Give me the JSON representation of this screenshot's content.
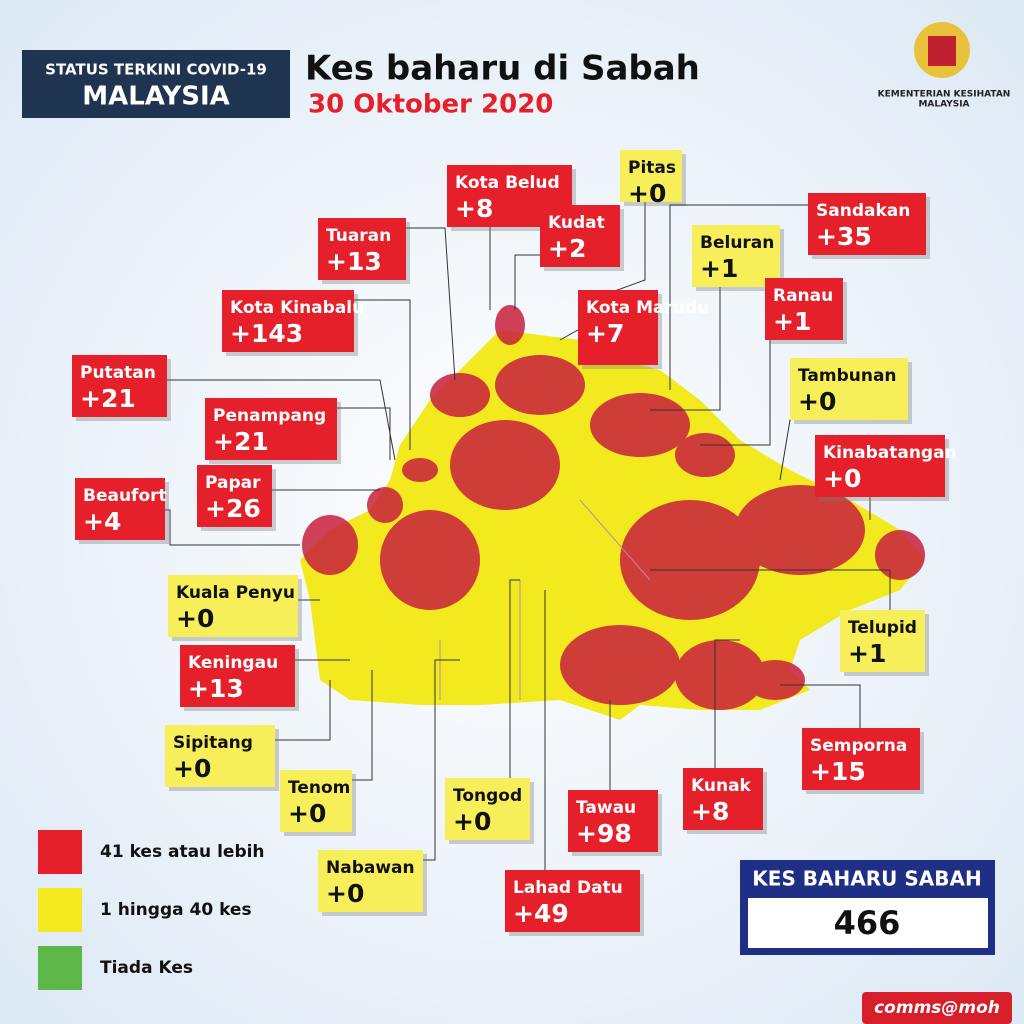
{
  "header": {
    "badge_line1": "STATUS TERKINI COVID-19",
    "badge_line2": "MALAYSIA",
    "title": "Kes baharu di Sabah",
    "date": "30 Oktober 2020",
    "ministry_line1": "KEMENTERIAN KESIHATAN",
    "ministry_line2": "MALAYSIA"
  },
  "districts": [
    {
      "name": "Kota Belud",
      "cases": "+8",
      "color": "#e5202a"
    },
    {
      "name": "Pitas",
      "cases": "+0",
      "color": "#f7ef5a"
    },
    {
      "name": "Kudat",
      "cases": "+2",
      "color": "#e5202a"
    },
    {
      "name": "Tuaran",
      "cases": "+13",
      "color": "#e5202a"
    },
    {
      "name": "Sandakan",
      "cases": "+35",
      "color": "#e5202a"
    },
    {
      "name": "Beluran",
      "cases": "+1",
      "color": "#f7ef5a"
    },
    {
      "name": "Kota Kinabalu",
      "cases": "+143",
      "color": "#e5202a"
    },
    {
      "name": "Kota Marudu",
      "cases": "+7",
      "color": "#e5202a"
    },
    {
      "name": "Ranau",
      "cases": "+1",
      "color": "#e5202a"
    },
    {
      "name": "Putatan",
      "cases": "+21",
      "color": "#e5202a"
    },
    {
      "name": "Tambunan",
      "cases": "+0",
      "color": "#f7ef5a"
    },
    {
      "name": "Penampang",
      "cases": "+21",
      "color": "#e5202a"
    },
    {
      "name": "Kinabatangan",
      "cases": "+0",
      "color": "#e5202a"
    },
    {
      "name": "Papar",
      "cases": "+26",
      "color": "#e5202a"
    },
    {
      "name": "Beaufort",
      "cases": "+4",
      "color": "#e5202a"
    },
    {
      "name": "Kuala Penyu",
      "cases": "+0",
      "color": "#f7ef5a"
    },
    {
      "name": "Telupid",
      "cases": "+1",
      "color": "#f7ef5a"
    },
    {
      "name": "Keningau",
      "cases": "+13",
      "color": "#e5202a"
    },
    {
      "name": "Semporna",
      "cases": "+15",
      "color": "#e5202a"
    },
    {
      "name": "Sipitang",
      "cases": "+0",
      "color": "#f7ef5a"
    },
    {
      "name": "Tenom",
      "cases": "+0",
      "color": "#f7ef5a"
    },
    {
      "name": "Tongod",
      "cases": "+0",
      "color": "#f7ef5a"
    },
    {
      "name": "Tawau",
      "cases": "+98",
      "color": "#e5202a"
    },
    {
      "name": "Kunak",
      "cases": "+8",
      "color": "#e5202a"
    },
    {
      "name": "Nabawan",
      "cases": "+0",
      "color": "#f7ef5a"
    },
    {
      "name": "Lahad Datu",
      "cases": "+49",
      "color": "#e5202a"
    }
  ],
  "legend": [
    {
      "label": "41 kes atau lebih",
      "color": "#e5202a"
    },
    {
      "label": "1 hingga 40 kes",
      "color": "#f2ea1f"
    },
    {
      "label": "Tiada Kes",
      "color": "#5cb848"
    }
  ],
  "total": {
    "label": "KES BAHARU SABAH",
    "value": "466"
  },
  "footer": "comms@moh"
}
